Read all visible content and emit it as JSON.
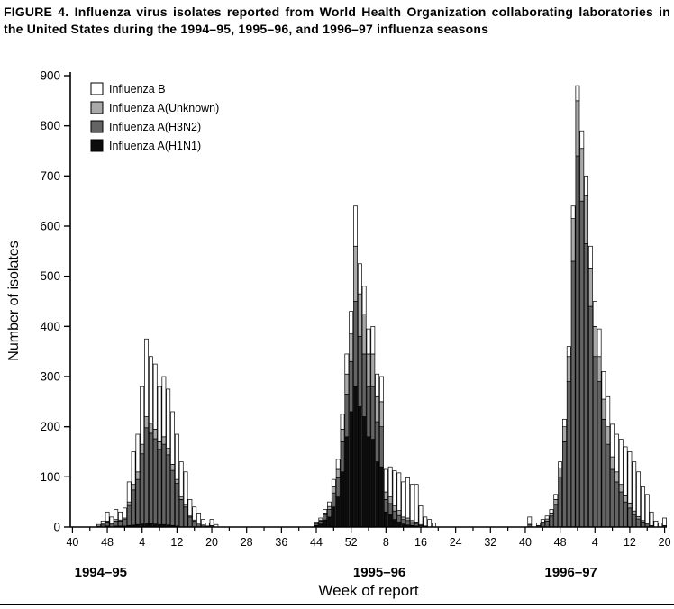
{
  "figure": {
    "title": "FIGURE 4. Influenza virus isolates reported from World Health Organization collaborating laboratories in the United States during the 1994–95, 1995–96, and 1996–97 influenza seasons"
  },
  "legend": {
    "items": [
      {
        "label": "Influenza B",
        "color": "#ffffff"
      },
      {
        "label": "Influenza A(Unknown)",
        "color": "#a9a9a9"
      },
      {
        "label": "Influenza A(H3N2)",
        "color": "#646464"
      },
      {
        "label": "Influenza A(H1N1)",
        "color": "#0d0d0d"
      }
    ]
  },
  "chart_data": {
    "type": "bar",
    "stacked": true,
    "title": "FIGURE 4. Influenza virus isolates reported from World Health Organization collaborating laboratories in the United States during the 1994–95, 1995–96, and 1996–97 influenza seasons",
    "xlabel": "Week of report",
    "ylabel": "Number of isolates",
    "ylim": [
      0,
      900
    ],
    "y_ticks": [
      0,
      100,
      200,
      300,
      400,
      500,
      600,
      700,
      800,
      900
    ],
    "grid": false,
    "legend_position": "top-left-inside",
    "x_total_slots": 137,
    "x_minor_tick_every": 4,
    "x_major_tick_every": 8,
    "x_tick_labels": [
      "40",
      "48",
      "4",
      "12",
      "20",
      "28",
      "36",
      "44",
      "52",
      "8",
      "16",
      "24",
      "32",
      "40",
      "48",
      "4",
      "12",
      "20"
    ],
    "seasons": [
      {
        "label": "1994–95",
        "center_index": 7
      },
      {
        "label": "1995–96",
        "center_index": 71
      },
      {
        "label": "1996–97",
        "center_index": 115
      }
    ],
    "series": [
      {
        "name": "Influenza A(H1N1)",
        "color": "#0d0d0d"
      },
      {
        "name": "Influenza A(H3N2)",
        "color": "#646464"
      },
      {
        "name": "Influenza A(Unknown)",
        "color": "#a9a9a9"
      },
      {
        "name": "Influenza B",
        "color": "#ffffff"
      }
    ],
    "bar_fields": [
      "season_index",
      "week_of_year",
      "slot_index",
      "a_h1n1",
      "a_h3n2",
      "a_unknown",
      "b"
    ],
    "bars": [
      [
        0,
        46,
        6,
        0,
        2,
        0,
        3
      ],
      [
        0,
        47,
        7,
        0,
        4,
        2,
        6
      ],
      [
        0,
        48,
        8,
        2,
        8,
        2,
        18
      ],
      [
        0,
        49,
        9,
        0,
        6,
        2,
        12
      ],
      [
        0,
        50,
        10,
        2,
        10,
        3,
        20
      ],
      [
        0,
        51,
        11,
        2,
        10,
        2,
        16
      ],
      [
        0,
        52,
        12,
        2,
        13,
        3,
        20
      ],
      [
        0,
        1,
        13,
        3,
        40,
        7,
        40
      ],
      [
        0,
        2,
        14,
        4,
        70,
        11,
        65
      ],
      [
        0,
        3,
        15,
        5,
        90,
        15,
        75
      ],
      [
        0,
        4,
        16,
        6,
        140,
        19,
        115
      ],
      [
        0,
        5,
        17,
        8,
        190,
        22,
        155
      ],
      [
        0,
        6,
        18,
        7,
        180,
        20,
        133
      ],
      [
        0,
        7,
        19,
        6,
        170,
        19,
        130
      ],
      [
        0,
        8,
        20,
        5,
        150,
        15,
        110
      ],
      [
        0,
        9,
        21,
        5,
        160,
        15,
        120
      ],
      [
        0,
        10,
        22,
        4,
        140,
        13,
        118
      ],
      [
        0,
        11,
        23,
        3,
        110,
        12,
        105
      ],
      [
        0,
        12,
        24,
        2,
        85,
        8,
        90
      ],
      [
        0,
        13,
        25,
        0,
        55,
        5,
        70
      ],
      [
        0,
        14,
        26,
        0,
        40,
        5,
        65
      ],
      [
        0,
        15,
        27,
        0,
        20,
        2,
        33
      ],
      [
        0,
        16,
        28,
        0,
        12,
        2,
        26
      ],
      [
        0,
        17,
        29,
        0,
        8,
        0,
        20
      ],
      [
        0,
        18,
        30,
        0,
        4,
        0,
        11
      ],
      [
        0,
        19,
        31,
        0,
        2,
        0,
        6
      ],
      [
        0,
        20,
        32,
        0,
        3,
        0,
        12
      ],
      [
        0,
        21,
        33,
        0,
        0,
        0,
        5
      ],
      [
        1,
        44,
        56,
        3,
        4,
        0,
        3
      ],
      [
        1,
        45,
        57,
        6,
        6,
        2,
        4
      ],
      [
        1,
        46,
        58,
        14,
        10,
        4,
        7
      ],
      [
        1,
        47,
        59,
        20,
        15,
        6,
        9
      ],
      [
        1,
        48,
        60,
        40,
        28,
        12,
        15
      ],
      [
        1,
        49,
        61,
        60,
        38,
        17,
        20
      ],
      [
        1,
        50,
        62,
        110,
        60,
        25,
        30
      ],
      [
        1,
        51,
        63,
        180,
        85,
        40,
        40
      ],
      [
        1,
        52,
        64,
        230,
        100,
        55,
        45
      ],
      [
        1,
        1,
        65,
        280,
        170,
        110,
        80
      ],
      [
        1,
        2,
        66,
        240,
        140,
        85,
        60
      ],
      [
        1,
        3,
        67,
        220,
        125,
        80,
        55
      ],
      [
        1,
        4,
        68,
        180,
        100,
        65,
        50
      ],
      [
        1,
        5,
        69,
        175,
        105,
        65,
        55
      ],
      [
        1,
        6,
        70,
        130,
        80,
        50,
        45
      ],
      [
        1,
        7,
        71,
        120,
        80,
        50,
        50
      ],
      [
        1,
        8,
        72,
        30,
        25,
        15,
        45
      ],
      [
        1,
        9,
        73,
        25,
        22,
        13,
        60
      ],
      [
        1,
        10,
        74,
        15,
        17,
        10,
        70
      ],
      [
        1,
        11,
        75,
        10,
        13,
        10,
        75
      ],
      [
        1,
        12,
        76,
        6,
        9,
        5,
        70
      ],
      [
        1,
        13,
        77,
        4,
        9,
        5,
        80
      ],
      [
        1,
        14,
        78,
        3,
        6,
        4,
        72
      ],
      [
        1,
        15,
        79,
        2,
        5,
        3,
        75
      ],
      [
        1,
        16,
        80,
        0,
        3,
        2,
        37
      ],
      [
        1,
        17,
        81,
        0,
        2,
        0,
        18
      ],
      [
        1,
        18,
        82,
        0,
        0,
        0,
        15
      ],
      [
        1,
        19,
        83,
        0,
        0,
        0,
        8
      ],
      [
        2,
        41,
        105,
        0,
        5,
        3,
        12
      ],
      [
        2,
        43,
        107,
        0,
        3,
        0,
        5
      ],
      [
        2,
        44,
        108,
        0,
        8,
        2,
        5
      ],
      [
        2,
        45,
        109,
        0,
        12,
        4,
        6
      ],
      [
        2,
        46,
        110,
        0,
        22,
        6,
        7
      ],
      [
        2,
        47,
        111,
        0,
        45,
        10,
        10
      ],
      [
        2,
        48,
        112,
        0,
        100,
        18,
        12
      ],
      [
        2,
        49,
        113,
        0,
        170,
        30,
        15
      ],
      [
        2,
        50,
        114,
        0,
        290,
        50,
        20
      ],
      [
        2,
        51,
        115,
        0,
        530,
        85,
        25
      ],
      [
        2,
        52,
        116,
        0,
        740,
        110,
        30
      ],
      [
        2,
        1,
        117,
        0,
        650,
        105,
        35
      ],
      [
        2,
        2,
        118,
        0,
        565,
        95,
        40
      ],
      [
        2,
        3,
        119,
        0,
        440,
        75,
        45
      ],
      [
        2,
        4,
        120,
        0,
        340,
        60,
        50
      ],
      [
        2,
        5,
        121,
        0,
        290,
        50,
        55
      ],
      [
        2,
        6,
        122,
        0,
        215,
        40,
        55
      ],
      [
        2,
        7,
        123,
        0,
        165,
        35,
        60
      ],
      [
        2,
        8,
        124,
        0,
        115,
        25,
        65
      ],
      [
        2,
        9,
        125,
        0,
        90,
        20,
        75
      ],
      [
        2,
        10,
        126,
        0,
        70,
        15,
        90
      ],
      [
        2,
        11,
        127,
        0,
        50,
        12,
        98
      ],
      [
        2,
        12,
        128,
        0,
        38,
        10,
        102
      ],
      [
        2,
        13,
        129,
        0,
        25,
        7,
        98
      ],
      [
        2,
        14,
        130,
        0,
        16,
        5,
        89
      ],
      [
        2,
        15,
        131,
        0,
        10,
        3,
        67
      ],
      [
        2,
        16,
        132,
        0,
        6,
        2,
        57
      ],
      [
        2,
        17,
        133,
        0,
        3,
        0,
        27
      ],
      [
        2,
        18,
        134,
        0,
        0,
        0,
        12
      ],
      [
        2,
        19,
        135,
        0,
        0,
        0,
        8
      ],
      [
        2,
        20,
        136,
        0,
        3,
        0,
        15
      ]
    ]
  }
}
